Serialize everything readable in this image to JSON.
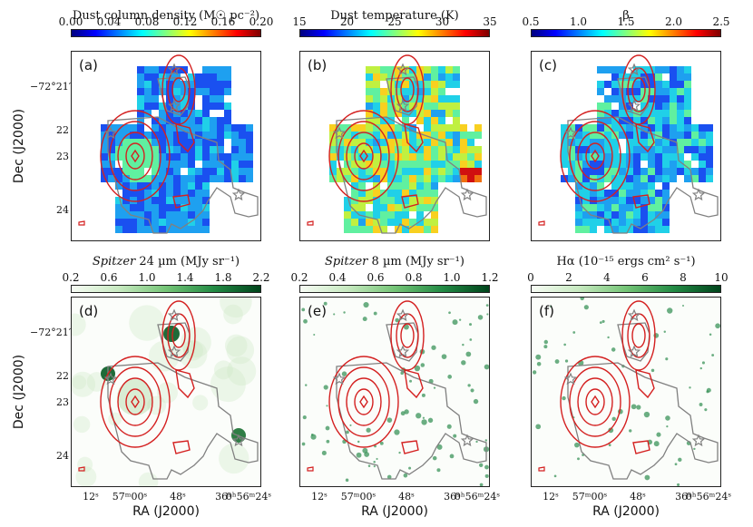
{
  "colorbars": [
    {
      "title_text": "Dust column density (M☉ pc⁻²)",
      "ticks": [
        "0.00",
        "0.04",
        "0.08",
        "0.12",
        "0.16",
        "0.20"
      ],
      "cmap": "jet"
    },
    {
      "title_text": "Dust temperature (K)",
      "ticks": [
        "15",
        "20",
        "25",
        "30",
        "35"
      ],
      "cmap": "jet"
    },
    {
      "title_text": "β",
      "ticks": [
        "0.5",
        "1.0",
        "1.5",
        "2.0",
        "2.5"
      ],
      "cmap": "jet"
    },
    {
      "title_italic": "Spitzer",
      "title_text": " 24 µm (MJy sr⁻¹)",
      "ticks": [
        "0.2",
        "0.6",
        "1.0",
        "1.4",
        "1.8",
        "2.2"
      ],
      "cmap": "greens"
    },
    {
      "title_italic": "Spitzer",
      "title_text": " 8 µm (MJy sr⁻¹)",
      "ticks": [
        "0.2",
        "0.4",
        "0.6",
        "0.8",
        "1.0",
        "1.2"
      ],
      "cmap": "greens"
    },
    {
      "title_text": "Hα (10⁻¹⁵ ergs cm² s⁻¹)",
      "ticks": [
        "0",
        "2",
        "4",
        "6",
        "8",
        "10"
      ],
      "cmap": "greens"
    }
  ],
  "panels": [
    {
      "label": "(a)",
      "type": "map"
    },
    {
      "label": "(b)",
      "type": "map"
    },
    {
      "label": "(c)",
      "type": "map"
    },
    {
      "label": "(d)",
      "type": "green"
    },
    {
      "label": "(e)",
      "type": "green"
    },
    {
      "label": "(f)",
      "type": "green"
    }
  ],
  "axes": {
    "ylabel": "Dec (J2000)",
    "xlabel": "RA (J2000)",
    "yticks": [
      "−72°21′",
      "22",
      "23",
      "24"
    ],
    "xticks": [
      "12ˢ",
      "57ᵐ00ˢ",
      "48ˢ",
      "36ˢ",
      "0ʰ56ᵐ24ˢ"
    ]
  },
  "colors": {
    "contour_red": "#d42020",
    "contour_grey": "#808080",
    "star": "#808080"
  }
}
